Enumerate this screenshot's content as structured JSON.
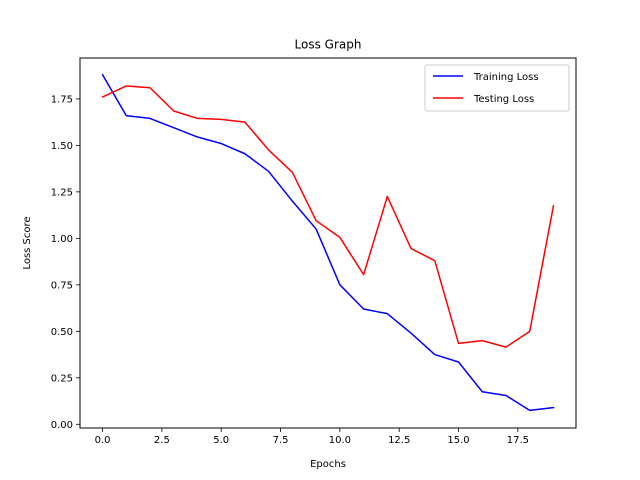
{
  "chart_data": {
    "type": "line",
    "title": "Loss Graph",
    "xlabel": "Epochs",
    "ylabel": "Loss Score",
    "x": [
      0,
      1,
      2,
      3,
      4,
      5,
      6,
      7,
      8,
      9,
      10,
      11,
      12,
      13,
      14,
      15,
      16,
      17,
      18,
      19
    ],
    "xlim": [
      -0.95,
      19.95
    ],
    "ylim": [
      -0.02,
      1.97
    ],
    "xticks": [
      0.0,
      2.5,
      5.0,
      7.5,
      10.0,
      12.5,
      15.0,
      17.5
    ],
    "xtick_labels": [
      "0.0",
      "2.5",
      "5.0",
      "7.5",
      "10.0",
      "12.5",
      "15.0",
      "17.5"
    ],
    "yticks": [
      0.0,
      0.25,
      0.5,
      0.75,
      1.0,
      1.25,
      1.5,
      1.75
    ],
    "ytick_labels": [
      "0.00",
      "0.25",
      "0.50",
      "0.75",
      "1.00",
      "1.25",
      "1.50",
      "1.75"
    ],
    "grid": false,
    "legend_position": "top-right",
    "series": [
      {
        "name": "Training Loss",
        "color": "#0000ff",
        "values": [
          1.88,
          1.66,
          1.645,
          1.595,
          1.545,
          1.51,
          1.455,
          1.36,
          1.2,
          1.05,
          0.75,
          0.62,
          0.595,
          0.49,
          0.375,
          0.335,
          0.175,
          0.155,
          0.075,
          0.09
        ]
      },
      {
        "name": "Testing Loss",
        "color": "#ff0000",
        "values": [
          1.76,
          1.82,
          1.81,
          1.685,
          1.645,
          1.64,
          1.625,
          1.475,
          1.355,
          1.095,
          1.005,
          0.805,
          1.225,
          0.945,
          0.88,
          0.435,
          0.45,
          0.415,
          0.5,
          1.175
        ]
      }
    ]
  }
}
